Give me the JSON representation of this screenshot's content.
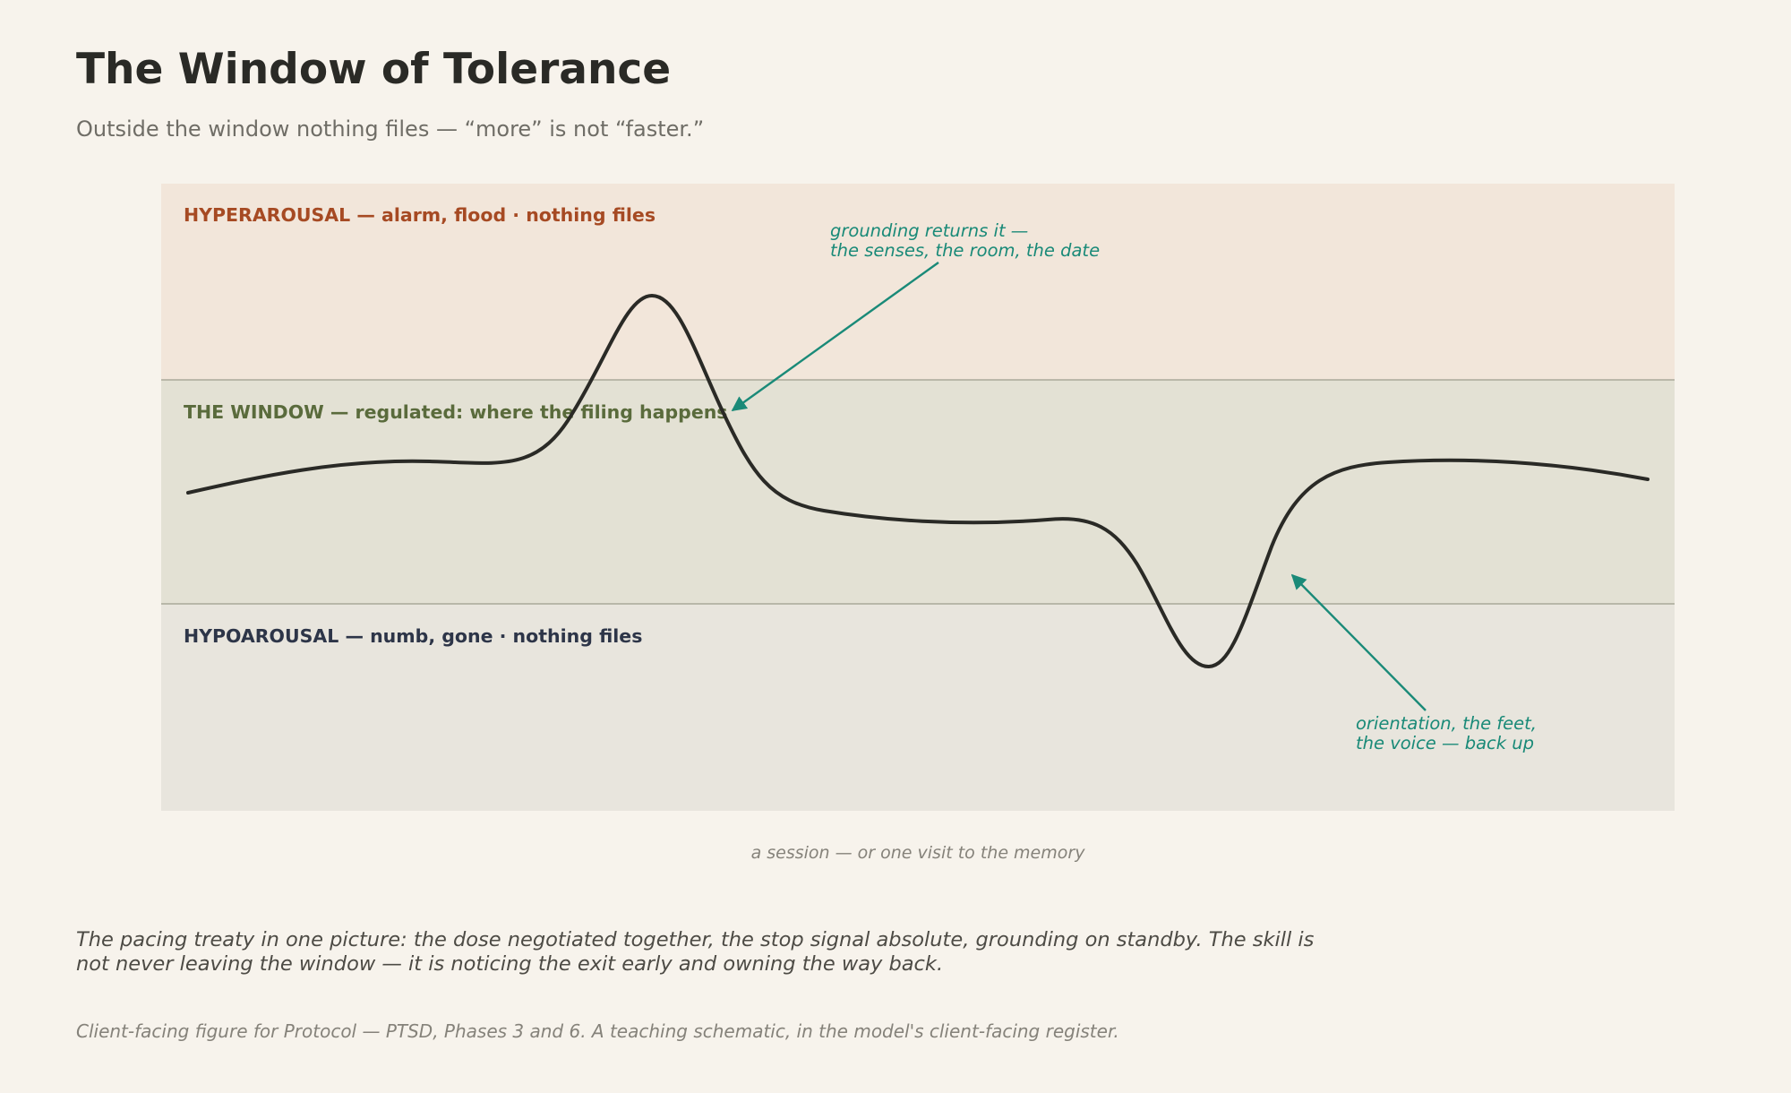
{
  "title": "The Window of Tolerance",
  "subtitle": "Outside the window nothing files — “more” is not “faster.”",
  "zones": {
    "hyper": {
      "label": "HYPERAROUSAL — alarm, flood · nothing files",
      "fill": "#f2e6da",
      "label_color": "#a64a23"
    },
    "window": {
      "label": "THE WINDOW — regulated: where the filing happens",
      "fill": "#e3e1d4",
      "label_color": "#5a6b3c"
    },
    "hypo": {
      "label": "HYPOAROUSAL — numb, gone · nothing files",
      "fill": "#e8e5dd",
      "label_color": "#2d3548"
    }
  },
  "annotations": {
    "upper": {
      "line1": "grounding returns it —",
      "line2": "the senses, the room, the date"
    },
    "lower": {
      "line1": "orientation, the feet,",
      "line2": "the voice — back up"
    }
  },
  "axis_caption": "a session — or one visit to the memory",
  "summary": "The pacing treaty in one picture: the dose negotiated together, the stop signal absolute, grounding on standby. The skill is not never leaving the window — it is noticing the exit early and owning the way back.",
  "footnote": "Client-facing figure for Protocol — PTSD, Phases 3 and 6. A teaching schematic, in the model's client-facing register.",
  "colors": {
    "background": "#f7f3ec",
    "curve": "#2a2a26",
    "annotation": "#1a8a78",
    "boundary": "#a9a99a"
  }
}
